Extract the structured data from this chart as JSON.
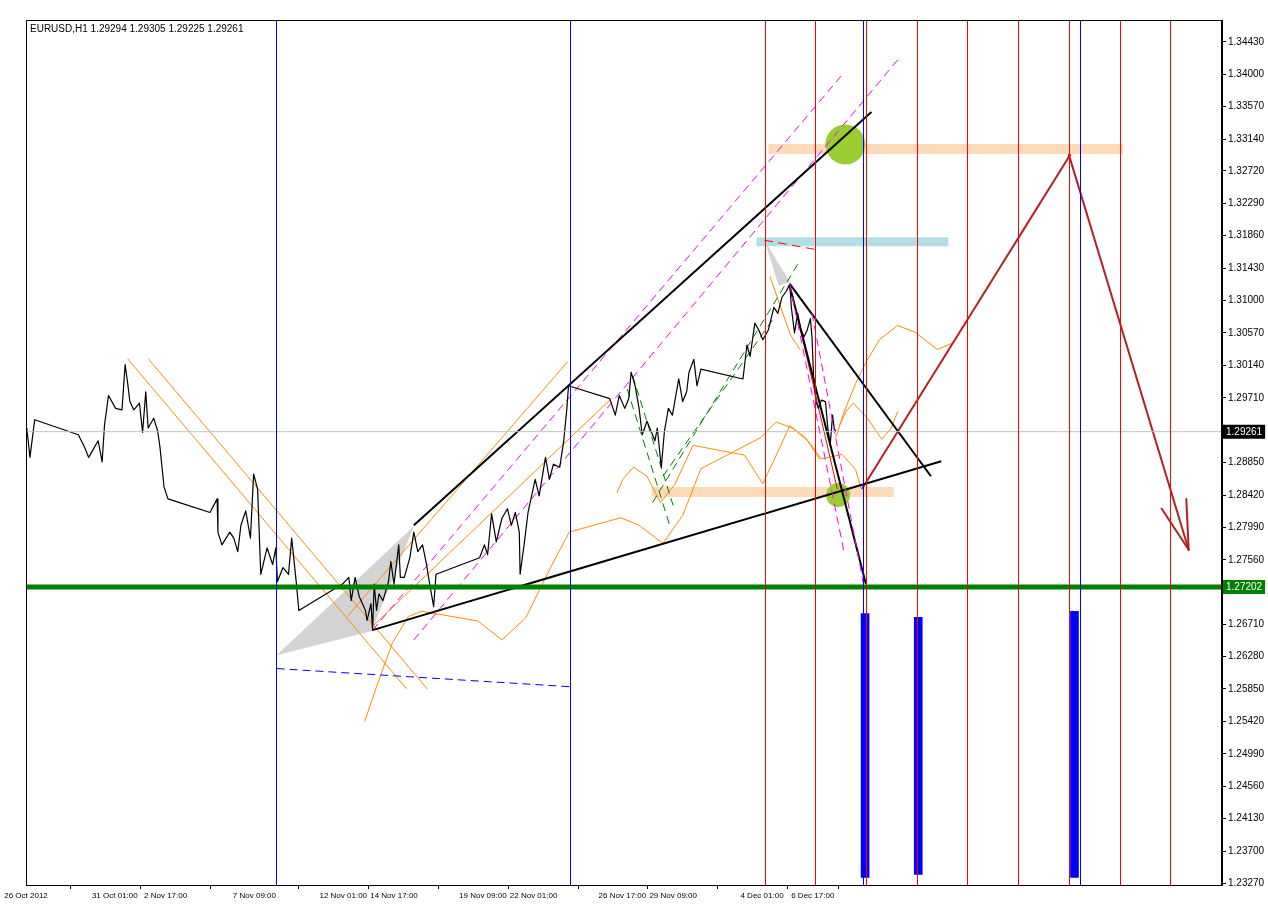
{
  "chart_data": {
    "type": "line",
    "title": "EURUSD,H1 1.29294 1.29305 1.29225 1.29261",
    "xlim": [
      "2012-10-26T09:00",
      "2012-12-28T05:00"
    ],
    "xticks": [
      {
        "value": "2012-10-26T09:00",
        "label": "26 Oct 2012"
      },
      {
        "value": "2012-10-31T01:00",
        "label": "31 Oct 01:00"
      },
      {
        "value": "2012-11-02T17:00",
        "label": "2 Nov 17:00"
      },
      {
        "value": "2012-11-07T09:00",
        "label": "7 Nov 09:00"
      },
      {
        "value": "2012-11-12T01:00",
        "label": "12 Nov 01:00"
      },
      {
        "value": "2012-11-14T17:00",
        "label": "14 Nov 17:00"
      },
      {
        "value": "2012-11-19T09:00",
        "label": "19 Nov 09:00"
      },
      {
        "value": "2012-11-22T01:00",
        "label": "22 Nov 01:00"
      },
      {
        "value": "2012-11-26T17:00",
        "label": "26 Nov 17:00"
      },
      {
        "value": "2012-11-29T09:00",
        "label": "29 Nov 09:00"
      },
      {
        "value": "2012-12-04T01:00",
        "label": "4 Dec 01:00"
      },
      {
        "value": "2012-12-06T17:00",
        "label": "6 Dec 17:00"
      }
    ],
    "ylim": [
      1.2325,
      1.3472
    ],
    "yticks": [
      {
        "value": 1.3443,
        "label": "1.34430"
      },
      {
        "value": 1.34,
        "label": "1.34000"
      },
      {
        "value": 1.3357,
        "label": "1.33570"
      },
      {
        "value": 1.3314,
        "label": "1.33140"
      },
      {
        "value": 1.3272,
        "label": "1.32720"
      },
      {
        "value": 1.3229,
        "label": "1.32290"
      },
      {
        "value": 1.3186,
        "label": "1.31860"
      },
      {
        "value": 1.3143,
        "label": "1.31430"
      },
      {
        "value": 1.31,
        "label": "1.31000"
      },
      {
        "value": 1.3057,
        "label": "1.30570"
      },
      {
        "value": 1.3014,
        "label": "1.30140"
      },
      {
        "value": 1.2971,
        "label": "1.29710"
      },
      {
        "value": 1.2885,
        "label": "1.28850"
      },
      {
        "value": 1.2842,
        "label": "1.28420"
      },
      {
        "value": 1.2799,
        "label": "1.27990"
      },
      {
        "value": 1.2756,
        "label": "1.27560"
      },
      {
        "value": 1.2671,
        "label": "1.26710"
      },
      {
        "value": 1.2628,
        "label": "1.26280"
      },
      {
        "value": 1.2585,
        "label": "1.25850"
      },
      {
        "value": 1.2542,
        "label": "1.25420"
      },
      {
        "value": 1.2499,
        "label": "1.24990"
      },
      {
        "value": 1.2456,
        "label": "1.24560"
      },
      {
        "value": 1.2413,
        "label": "1.24130"
      },
      {
        "value": 1.237,
        "label": "1.23700"
      },
      {
        "value": 1.2327,
        "label": "1.23270"
      }
    ],
    "ref_lines": [
      {
        "axis": "y",
        "value": 1.27202,
        "label": "1.27202",
        "color": "#008000"
      },
      {
        "axis": "y",
        "value": 1.29261,
        "label": "1.29261",
        "color": "#c0c0c0"
      },
      {
        "axis": "x",
        "value": "2012-11-08T12:00",
        "color": "#0000ff"
      },
      {
        "axis": "x",
        "value": "2012-11-23T23:00",
        "color": "#0000ff"
      },
      {
        "axis": "x",
        "value": "2012-12-09T08:00",
        "color": "#0000ff"
      },
      {
        "axis": "x",
        "value": "2012-12-20T18:00",
        "color": "#0000ff"
      },
      {
        "axis": "x",
        "value": "2012-12-04T05:00",
        "color": "#ff0000"
      },
      {
        "axis": "x",
        "value": "2012-12-06T20:00",
        "color": "#ff0000"
      },
      {
        "axis": "x",
        "value": "2012-12-09T12:00",
        "color": "#ff0000"
      },
      {
        "axis": "x",
        "value": "2012-12-12T04:00",
        "color": "#ff0000"
      },
      {
        "axis": "x",
        "value": "2012-12-14T20:00",
        "color": "#ff0000"
      },
      {
        "axis": "x",
        "value": "2012-12-17T12:00",
        "color": "#ff0000"
      },
      {
        "axis": "x",
        "value": "2012-12-20T04:00",
        "color": "#ff0000"
      },
      {
        "axis": "x",
        "value": "2012-12-22T20:00",
        "color": "#ff0000"
      },
      {
        "axis": "x",
        "value": "2012-12-25T12:00",
        "color": "#ff0000"
      }
    ],
    "series": [
      {
        "color": "#ffdab9",
        "x": [
          "2012-12-04T09:00",
          "2012-12-23T00:00"
        ],
        "values": [
          1.3301,
          1.3301
        ]
      },
      {
        "color": "#b0e0e6",
        "x": [
          "2012-12-03T18:00",
          "2012-12-13T20:00"
        ],
        "values": [
          1.3178,
          1.3178
        ]
      },
      {
        "color": "#ffdab9",
        "x": [
          "2012-11-28T06:00",
          "2012-12-10T23:00"
        ],
        "values": [
          1.2846,
          1.2846
        ]
      },
      {
        "type": "bubble",
        "color": "#9acd32",
        "x": [
          "2012-12-08T10:00",
          "2012-12-08T01:00"
        ],
        "values": [
          1.3307,
          1.2842
        ],
        "sizes": [
          1,
          0.36
        ]
      },
      {
        "color": "#ff8c00",
        "x": [
          "2012-11-13T04:00",
          "2012-11-13T19:00",
          "2012-11-14T15:00",
          "2012-11-15T11:00",
          "2012-11-16T04:00",
          "2012-11-19T03:00",
          "2012-11-20T09:00",
          "2012-11-21T15:00",
          "2012-11-22T21:00",
          "2012-11-23T22:00",
          "2012-11-26T15:00",
          "2012-11-27T14:00",
          "2012-11-28T20:00",
          "2012-11-29T21:00",
          "2012-11-30T20:00",
          "2012-12-03T23:00",
          "2012-12-04T19:00",
          "2012-12-05T15:00",
          "2012-12-06T11:00",
          "2012-12-07T04:00",
          "2012-12-08T06:00",
          "2012-12-08T23:00",
          "2012-12-09T06:00"
        ],
        "values": [
          1.2542,
          1.2588,
          1.2646,
          1.2681,
          1.2688,
          1.2675,
          1.265,
          1.2679,
          1.2743,
          1.2793,
          1.2812,
          1.2802,
          1.2778,
          1.2815,
          1.2877,
          1.2918,
          1.2939,
          1.2931,
          1.2914,
          1.289,
          1.2896,
          1.2876,
          1.2851
        ]
      },
      {
        "color": "#ff8c00",
        "x": [
          "2012-11-26T10:00",
          "2012-11-26T18:00",
          "2012-11-27T07:00",
          "2012-11-28T00:00",
          "2012-11-28T17:00",
          "2012-11-29T11:00",
          "2012-11-30T10:00",
          "2012-12-03T03:00",
          "2012-12-04T02:00",
          "2012-12-04T19:00",
          "2012-12-05T12:00",
          "2012-12-06T08:00",
          "2012-12-07T02:00"
        ],
        "values": [
          1.2845,
          1.2864,
          1.2879,
          1.2867,
          1.2832,
          1.2856,
          1.2908,
          1.2895,
          1.2857,
          1.2895,
          1.2934,
          1.2918,
          1.2889
        ]
      },
      {
        "color": "#ff8c00",
        "x": [
          "2012-12-07T22:00",
          "2012-12-08T08:00",
          "2012-12-08T23:00",
          "2012-12-09T12:00",
          "2012-12-10T05:00",
          "2012-12-11T04:00",
          "2012-12-12T02:00",
          "2012-12-13T06:00",
          "2012-12-14T02:00"
        ],
        "values": [
          1.2918,
          1.2951,
          1.299,
          1.3018,
          1.3048,
          1.3067,
          1.3058,
          1.3035,
          1.3044
        ]
      },
      {
        "color": "#ff8c00",
        "x": [
          "2012-12-08T03:00",
          "2012-12-08T11:00",
          "2012-12-08T20:00",
          "2012-12-09T14:00",
          "2012-12-10T08:00",
          "2012-12-10T20:00",
          "2012-12-11T04:00"
        ],
        "values": [
          1.2935,
          1.2953,
          1.2964,
          1.2944,
          1.2916,
          1.2931,
          1.2953
        ]
      },
      {
        "color": "#ff8c00",
        "x": [
          "2012-12-04T11:00",
          "2012-12-05T00:00",
          "2012-12-05T13:00",
          "2012-12-06T01:00"
        ],
        "values": [
          1.3132,
          1.3093,
          1.3054,
          1.3035
        ]
      },
      {
        "color": "#ff8c00",
        "x": [
          "2012-10-31T17:00",
          "2012-11-15T09:00"
        ],
        "values": [
          1.3023,
          1.2585
        ]
      },
      {
        "color": "#ff8c00",
        "x": [
          "2012-11-01T19:00",
          "2012-11-16T11:00"
        ],
        "values": [
          1.3023,
          1.2585
        ]
      },
      {
        "color": "#ff8c00",
        "x": [
          "2012-11-12T06:00",
          "2012-11-23T20:00"
        ],
        "values": [
          1.2681,
          1.3019
        ]
      },
      {
        "color": "#ff8c00",
        "x": [
          "2012-11-13T12:00",
          "2012-11-26T03:00"
        ],
        "values": [
          1.2666,
          1.297
        ]
      },
      {
        "color": "#008000",
        "line_style": "dashed",
        "x": [
          "2012-11-26T23:00",
          "2012-11-29T04:00"
        ],
        "values": [
          1.2983,
          1.2804
        ]
      },
      {
        "color": "#008000",
        "line_style": "dashed",
        "x": [
          "2012-11-27T06:00",
          "2012-11-29T09:00"
        ],
        "values": [
          1.3,
          1.2828
        ]
      },
      {
        "color": "#008000",
        "line_style": "dashed",
        "x": [
          "2012-11-28T07:00",
          "2012-12-05T22:00"
        ],
        "values": [
          1.2832,
          1.3148
        ]
      },
      {
        "color": "#008000",
        "line_style": "dashed",
        "x": [
          "2012-11-28T20:00",
          "2012-12-04T14:00"
        ],
        "values": [
          1.2867,
          1.3074
        ]
      },
      {
        "color": "#ff00ff",
        "line_style": "dashed",
        "x": [
          "2012-11-13T14:00",
          "2012-12-08T05:00"
        ],
        "values": [
          1.2663,
          1.3398
        ]
      },
      {
        "color": "#ff00ff",
        "line_style": "dashed",
        "x": [
          "2012-11-15T18:00",
          "2012-12-11T04:00"
        ],
        "values": [
          1.265,
          1.3419
        ]
      },
      {
        "color": "#0000ff",
        "line_style": "dashed",
        "x": [
          "2012-11-08T13:00",
          "2012-11-23T22:00"
        ],
        "values": [
          1.2612,
          1.2588
        ]
      },
      {
        "color": "#ff0000",
        "line_style": "dashed",
        "x": [
          "2012-12-04T04:00",
          "2012-12-06T19:00"
        ],
        "values": [
          1.318,
          1.3168
        ]
      },
      {
        "color": "#ff0000",
        "x": [
          "2012-12-05T15:00",
          "2012-12-08T00:00"
        ],
        "values": [
          1.3109,
          1.285
        ]
      },
      {
        "color": "#b22222",
        "x": [
          "2012-12-09T07:00",
          "2012-12-20T06:00"
        ],
        "values": [
          1.285,
          1.3294
        ]
      },
      {
        "color": "#000000",
        "x": [
          "2012-11-15T18:00",
          "2012-12-09T19:00"
        ],
        "values": [
          1.2802,
          1.335
        ]
      },
      {
        "color": "#000000",
        "x": [
          "2012-11-13T14:00",
          "2012-12-13T11:00"
        ],
        "values": [
          1.2663,
          1.2887
        ]
      },
      {
        "color": "#000000",
        "x": [
          "2012-12-05T12:00",
          "2012-12-12T22:00"
        ],
        "values": [
          1.3122,
          1.2867
        ]
      },
      {
        "color": "#000000",
        "x": [
          "2012-12-05T12:00",
          "2012-12-09T12:00"
        ],
        "values": [
          1.3119,
          1.2724
        ]
      },
      {
        "color": "#000000",
        "x": [
          "2012-10-26T10:00",
          "2012-10-26T14:00",
          "2012-10-26T20:00",
          "2012-10-29T03:00",
          "2012-10-29T11:00",
          "2012-10-29T16:00",
          "2012-10-29T23:00",
          "2012-10-30T04:00",
          "2012-10-30T09:00",
          "2012-10-30T12:00",
          "2012-10-30T17:00",
          "2012-10-31T02:00",
          "2012-10-31T10:00",
          "2012-10-31T14:00",
          "2012-10-31T17:00",
          "2012-10-31T20:00",
          "2012-11-01T01:00",
          "2012-11-01T08:00",
          "2012-11-01T12:00",
          "2012-11-01T16:00",
          "2012-11-01T19:00",
          "2012-11-02T02:00",
          "2012-11-02T07:00",
          "2012-11-02T10:00",
          "2012-11-02T15:00",
          "2012-11-02T20:00",
          "2012-11-05T01:00",
          "2012-11-05T10:00",
          "2012-11-05T11:00",
          "2012-11-05T16:00",
          "2012-11-06T02:00",
          "2012-11-06T07:00",
          "2012-11-06T12:00",
          "2012-11-06T16:00",
          "2012-11-06T22:00",
          "2012-11-07T04:00",
          "2012-11-07T08:00",
          "2012-11-07T13:00",
          "2012-11-07T17:00",
          "2012-11-08T01:00",
          "2012-11-08T08:00",
          "2012-11-08T12:00",
          "2012-11-08T14:00",
          "2012-11-08T21:00",
          "2012-11-09T04:00",
          "2012-11-09T08:00",
          "2012-11-09T14:00",
          "2012-11-09T17:00",
          "2012-11-12T00:00",
          "2012-11-12T08:00",
          "2012-11-12T11:00",
          "2012-11-12T16:00",
          "2012-11-12T21:00",
          "2012-11-13T05:00",
          "2012-11-13T07:00",
          "2012-11-13T12:00",
          "2012-11-13T14:00",
          "2012-11-13T16:00",
          "2012-11-13T19:00",
          "2012-11-13T22:00",
          "2012-11-14T03:00",
          "2012-11-14T10:00",
          "2012-11-14T13:00",
          "2012-11-14T17:00",
          "2012-11-14T23:00",
          "2012-11-15T01:00",
          "2012-11-15T06:00",
          "2012-11-15T13:00",
          "2012-11-15T18:00",
          "2012-11-15T23:00",
          "2012-11-16T05:00",
          "2012-11-16T10:00",
          "2012-11-16T14:00",
          "2012-11-16T19:00",
          "2012-11-16T22:00",
          "2012-11-19T05:00",
          "2012-11-19T11:00",
          "2012-11-19T15:00",
          "2012-11-19T20:00",
          "2012-11-20T02:00",
          "2012-11-20T09:00",
          "2012-11-20T16:00",
          "2012-11-20T21:00",
          "2012-11-21T02:00",
          "2012-11-21T07:00",
          "2012-11-21T08:00",
          "2012-11-21T13:00",
          "2012-11-21T18:00",
          "2012-11-22T03:00",
          "2012-11-22T08:00",
          "2012-11-22T16:00",
          "2012-11-22T21:00",
          "2012-11-23T02:00",
          "2012-11-23T10:00",
          "2012-11-23T15:00",
          "2012-11-23T19:00",
          "2012-11-23T21:00",
          "2012-11-26T01:00",
          "2012-11-26T08:00",
          "2012-11-26T13:00",
          "2012-11-26T20:00",
          "2012-11-27T01:00",
          "2012-11-27T04:00",
          "2012-11-27T09:00",
          "2012-11-27T14:00",
          "2012-11-27T18:00",
          "2012-11-28T00:00",
          "2012-11-28T05:00",
          "2012-11-28T10:00",
          "2012-11-28T13:00",
          "2012-11-28T18:00",
          "2012-11-28T22:00",
          "2012-11-29T03:00",
          "2012-11-29T08:00",
          "2012-11-29T11:00",
          "2012-11-29T16:00",
          "2012-11-29T21:00",
          "2012-11-30T02:00",
          "2012-11-30T05:00",
          "2012-11-30T11:00",
          "2012-11-30T15:00",
          "2012-11-30T20:00",
          "2012-12-03T01:00",
          "2012-12-03T06:00",
          "2012-12-03T10:00",
          "2012-12-03T16:00",
          "2012-12-03T21:00",
          "2012-12-04T02:00",
          "2012-12-04T09:00",
          "2012-12-04T16:00",
          "2012-12-04T21:00",
          "2012-12-05T02:00",
          "2012-12-05T08:00",
          "2012-12-05T12:00",
          "2012-12-05T14:00",
          "2012-12-05T18:00",
          "2012-12-05T22:00",
          "2012-12-06T02:00",
          "2012-12-06T06:00",
          "2012-12-06T10:00",
          "2012-12-06T14:00",
          "2012-12-06T16:00",
          "2012-12-06T18:00",
          "2012-12-06T21:00",
          "2012-12-07T00:00",
          "2012-12-07T04:00",
          "2012-12-07T09:00",
          "2012-12-07T12:00",
          "2012-12-07T15:00",
          "2012-12-07T18:00",
          "2012-12-07T20:00",
          "2012-12-07T22:00"
        ],
        "values": [
          1.2931,
          1.2892,
          1.2942,
          1.2922,
          1.2905,
          1.2892,
          1.2905,
          1.2914,
          1.2886,
          1.2935,
          1.2974,
          1.2957,
          1.2955,
          1.3015,
          1.2992,
          1.2966,
          1.2955,
          1.2964,
          1.2925,
          1.2979,
          1.2931,
          1.2944,
          1.2927,
          1.2905,
          1.2853,
          1.2837,
          1.2819,
          1.2837,
          1.2793,
          1.2776,
          1.2793,
          1.2785,
          1.2767,
          1.2802,
          1.2821,
          1.2785,
          1.287,
          1.285,
          1.2737,
          1.2772,
          1.275,
          1.2772,
          1.2727,
          1.2746,
          1.2737,
          1.2785,
          1.2724,
          1.2689,
          1.2724,
          1.2733,
          1.2702,
          1.2733,
          1.2708,
          1.2689,
          1.2676,
          1.2698,
          1.2663,
          1.2724,
          1.2689,
          1.2711,
          1.2702,
          1.2727,
          1.2754,
          1.2724,
          1.2776,
          1.2733,
          1.2733,
          1.2759,
          1.2793,
          1.2767,
          1.2776,
          1.275,
          1.2724,
          1.2694,
          1.2737,
          1.2759,
          1.2776,
          1.2763,
          1.2817,
          1.278,
          1.2811,
          1.2824,
          1.2802,
          1.2819,
          1.2793,
          1.2737,
          1.2776,
          1.2819,
          1.2863,
          1.2841,
          1.2892,
          1.2863,
          1.2883,
          1.2879,
          1.2914,
          1.2957,
          1.2987,
          1.297,
          1.2948,
          1.2974,
          1.2957,
          1.297,
          1.3005,
          1.2987,
          1.2957,
          1.2922,
          1.294,
          1.2927,
          1.2914,
          1.2931,
          1.2879,
          1.2927,
          1.2957,
          1.2948,
          1.2966,
          1.2996,
          1.2966,
          1.2979,
          1.3005,
          1.3022,
          1.2987,
          1.3009,
          1.2996,
          1.3041,
          1.3026,
          1.307,
          1.3061,
          1.3048,
          1.3061,
          1.3091,
          1.3083,
          1.3104,
          1.3113,
          1.3122,
          1.3091,
          1.3057,
          1.3083,
          1.3061,
          1.3052,
          1.3061,
          1.3076,
          1.3052,
          1.3,
          1.2966,
          1.2957,
          1.2968,
          1.2966,
          1.2931,
          1.2909,
          1.2948,
          1.2931,
          1.2926
        ]
      },
      {
        "color": "#ff00ff",
        "line_style": "dashed",
        "x": [
          "2012-12-05T12:00",
          "2012-12-08T08:00"
        ],
        "values": [
          1.3122,
          1.2769
        ]
      },
      {
        "color": "#ff00ff",
        "line_style": "dashed",
        "x": [
          "2012-12-06T16:00",
          "2012-12-09T09:00"
        ],
        "values": [
          1.3083,
          1.2724
        ]
      },
      {
        "type": "bar",
        "color": "#0000ff",
        "x": [
          "2012-12-09T11:00",
          "2012-12-12T06:00",
          "2012-12-20T11:00"
        ],
        "base": [
          1.2335,
          1.2339,
          1.2335
        ],
        "values": [
          0.035,
          0.0341,
          0.0353
        ]
      }
    ]
  }
}
